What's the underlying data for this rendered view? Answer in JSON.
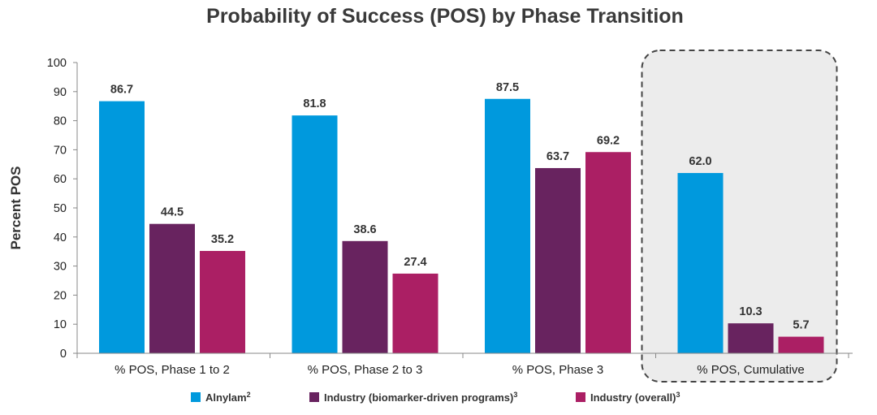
{
  "chart_data": {
    "type": "bar",
    "title": "Probability of Success (POS) by Phase Transition",
    "ylabel": "Percent POS",
    "xlabel": "",
    "ylim": [
      0,
      100
    ],
    "yticks": [
      0,
      10,
      20,
      30,
      40,
      50,
      60,
      70,
      80,
      90,
      100
    ],
    "categories": [
      "% POS, Phase 1 to 2",
      "% POS, Phase 2 to 3",
      "% POS, Phase 3",
      "% POS, Cumulative"
    ],
    "series": [
      {
        "name": "Alnylam",
        "sup": "2",
        "color": "#0099dd",
        "values": [
          86.7,
          81.8,
          87.5,
          62.0
        ],
        "labels": [
          "86.7",
          "81.8",
          "87.5",
          "62.0"
        ]
      },
      {
        "name": "Industry (biomarker-driven programs)",
        "sup": "3",
        "color": "#68235f",
        "values": [
          44.5,
          38.6,
          63.7,
          10.3
        ],
        "labels": [
          "44.5",
          "38.6",
          "63.7",
          "10.3"
        ]
      },
      {
        "name": "Industry (overall)",
        "sup": "3",
        "color": "#ab1f64",
        "values": [
          35.2,
          27.4,
          69.2,
          5.7
        ],
        "labels": [
          "35.2",
          "27.4",
          "69.2",
          "5.7"
        ]
      }
    ],
    "highlighted_category": "% POS, Cumulative",
    "highlight_fill": "#ececec",
    "highlight_border": "#444444",
    "grid": false,
    "legend_position": "bottom"
  }
}
